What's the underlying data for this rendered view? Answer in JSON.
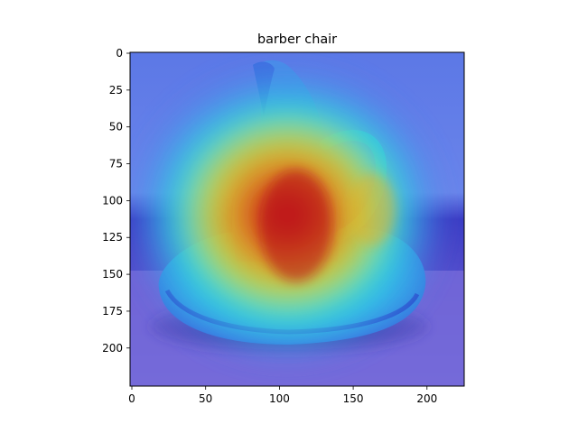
{
  "chart_data": {
    "type": "heatmap",
    "title": "barber chair",
    "xlabel": "",
    "ylabel": "",
    "xlim": [
      0,
      224
    ],
    "ylim": [
      224,
      0
    ],
    "x_ticks": [
      0,
      50,
      100,
      150,
      200
    ],
    "y_ticks": [
      0,
      25,
      50,
      75,
      100,
      125,
      150,
      175,
      200
    ],
    "colormap": "jet",
    "grid": false,
    "legend": "none",
    "image_description_colors": {
      "background": "#5a6fe0",
      "wall_band": "#3b3fc8",
      "table": "#7272e0",
      "shadow": "#1a1a8c",
      "hot": "#d01010",
      "warm": "#f0c020",
      "cool": "#30e0e0"
    }
  }
}
